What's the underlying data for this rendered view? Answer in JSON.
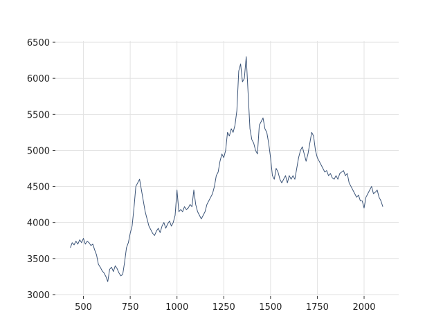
{
  "chart_data": {
    "type": "line",
    "x": [
      430,
      440,
      450,
      460,
      470,
      480,
      490,
      500,
      510,
      520,
      530,
      540,
      550,
      560,
      570,
      580,
      590,
      600,
      610,
      620,
      630,
      640,
      650,
      660,
      670,
      680,
      690,
      700,
      710,
      720,
      730,
      740,
      750,
      760,
      770,
      780,
      790,
      800,
      810,
      820,
      830,
      840,
      850,
      860,
      870,
      880,
      890,
      900,
      910,
      920,
      930,
      940,
      950,
      960,
      970,
      980,
      990,
      1000,
      1010,
      1020,
      1030,
      1040,
      1050,
      1060,
      1070,
      1080,
      1090,
      1100,
      1110,
      1120,
      1130,
      1140,
      1150,
      1160,
      1170,
      1180,
      1190,
      1200,
      1210,
      1220,
      1230,
      1240,
      1250,
      1260,
      1270,
      1280,
      1290,
      1300,
      1310,
      1320,
      1330,
      1340,
      1350,
      1360,
      1370,
      1380,
      1390,
      1400,
      1410,
      1420,
      1430,
      1440,
      1450,
      1460,
      1470,
      1480,
      1490,
      1500,
      1510,
      1520,
      1530,
      1540,
      1550,
      1560,
      1570,
      1580,
      1590,
      1600,
      1610,
      1620,
      1630,
      1640,
      1650,
      1660,
      1670,
      1680,
      1690,
      1700,
      1710,
      1720,
      1730,
      1740,
      1750,
      1760,
      1770,
      1780,
      1790,
      1800,
      1810,
      1820,
      1830,
      1840,
      1850,
      1860,
      1870,
      1880,
      1890,
      1900,
      1910,
      1920,
      1930,
      1940,
      1950,
      1960,
      1970,
      1980,
      1990,
      2000,
      2010,
      2020,
      2030,
      2040,
      2050,
      2060,
      2070,
      2080,
      2090,
      2100
    ],
    "series": [
      {
        "color": "#3b5478",
        "values": [
          3650,
          3720,
          3690,
          3740,
          3700,
          3760,
          3720,
          3780,
          3700,
          3740,
          3720,
          3680,
          3700,
          3620,
          3550,
          3420,
          3380,
          3330,
          3300,
          3250,
          3180,
          3350,
          3380,
          3320,
          3400,
          3360,
          3300,
          3260,
          3280,
          3450,
          3650,
          3720,
          3850,
          3950,
          4200,
          4500,
          4550,
          4600,
          4450,
          4300,
          4150,
          4050,
          3950,
          3900,
          3850,
          3820,
          3880,
          3920,
          3860,
          3950,
          4000,
          3920,
          3980,
          4020,
          3950,
          4000,
          4100,
          4450,
          4150,
          4180,
          4150,
          4220,
          4180,
          4200,
          4250,
          4220,
          4450,
          4250,
          4150,
          4100,
          4050,
          4100,
          4150,
          4250,
          4300,
          4350,
          4400,
          4500,
          4650,
          4700,
          4850,
          4950,
          4900,
          5000,
          5250,
          5200,
          5300,
          5250,
          5350,
          5550,
          6100,
          6200,
          5950,
          6000,
          6300,
          5800,
          5300,
          5150,
          5100,
          5000,
          4950,
          5350,
          5400,
          5450,
          5300,
          5250,
          5100,
          4900,
          4650,
          4600,
          4750,
          4700,
          4600,
          4550,
          4600,
          4650,
          4550,
          4650,
          4600,
          4650,
          4600,
          4750,
          4900,
          5000,
          5050,
          4950,
          4850,
          4950,
          5100,
          5250,
          5200,
          5000,
          4900,
          4850,
          4800,
          4750,
          4700,
          4720,
          4650,
          4680,
          4620,
          4600,
          4650,
          4600,
          4680,
          4700,
          4720,
          4650,
          4680,
          4550,
          4500,
          4450,
          4400,
          4350,
          4380,
          4300,
          4300,
          4200,
          4350,
          4400,
          4450,
          4500,
          4400,
          4420,
          4450,
          4350,
          4300,
          4220
        ]
      }
    ],
    "xlim": [
      350,
      2185
    ],
    "ylim": [
      2980,
      6520
    ],
    "xticks": [
      500,
      750,
      1000,
      1250,
      1500,
      1750,
      2000
    ],
    "yticks": [
      3000,
      3500,
      4000,
      4500,
      5000,
      5500,
      6000,
      6500
    ],
    "grid": true
  }
}
